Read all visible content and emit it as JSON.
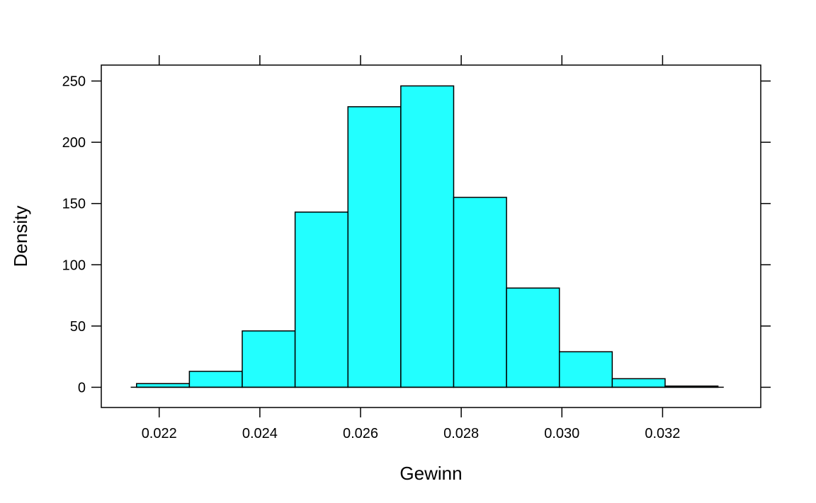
{
  "chart_data": {
    "type": "bar",
    "xlabel": "Gewinn",
    "ylabel": "Density",
    "xlim": [
      0.02085,
      0.03395
    ],
    "ylim": [
      -16.5,
      263
    ],
    "x_ticks": [
      0.022,
      0.024,
      0.026,
      0.028,
      0.03,
      0.032
    ],
    "x_tick_labels": [
      "0.022",
      "0.024",
      "0.026",
      "0.028",
      "0.030",
      "0.032"
    ],
    "y_ticks": [
      0,
      50,
      100,
      150,
      200,
      250
    ],
    "y_tick_labels": [
      "0",
      "50",
      "100",
      "150",
      "200",
      "250"
    ],
    "bins": [
      {
        "x0": 0.02155,
        "x1": 0.0226,
        "density": 3
      },
      {
        "x0": 0.0226,
        "x1": 0.02365,
        "density": 13
      },
      {
        "x0": 0.02365,
        "x1": 0.0247,
        "density": 46
      },
      {
        "x0": 0.0247,
        "x1": 0.02575,
        "density": 143
      },
      {
        "x0": 0.02575,
        "x1": 0.0268,
        "density": 229
      },
      {
        "x0": 0.0268,
        "x1": 0.02785,
        "density": 246
      },
      {
        "x0": 0.02785,
        "x1": 0.0289,
        "density": 155
      },
      {
        "x0": 0.0289,
        "x1": 0.02995,
        "density": 81
      },
      {
        "x0": 0.02995,
        "x1": 0.031,
        "density": 29
      },
      {
        "x0": 0.031,
        "x1": 0.03205,
        "density": 7
      },
      {
        "x0": 0.03205,
        "x1": 0.0331,
        "density": 1
      }
    ],
    "bar_color": "#22FFFF",
    "edge_color": "#000000",
    "grid": false
  }
}
